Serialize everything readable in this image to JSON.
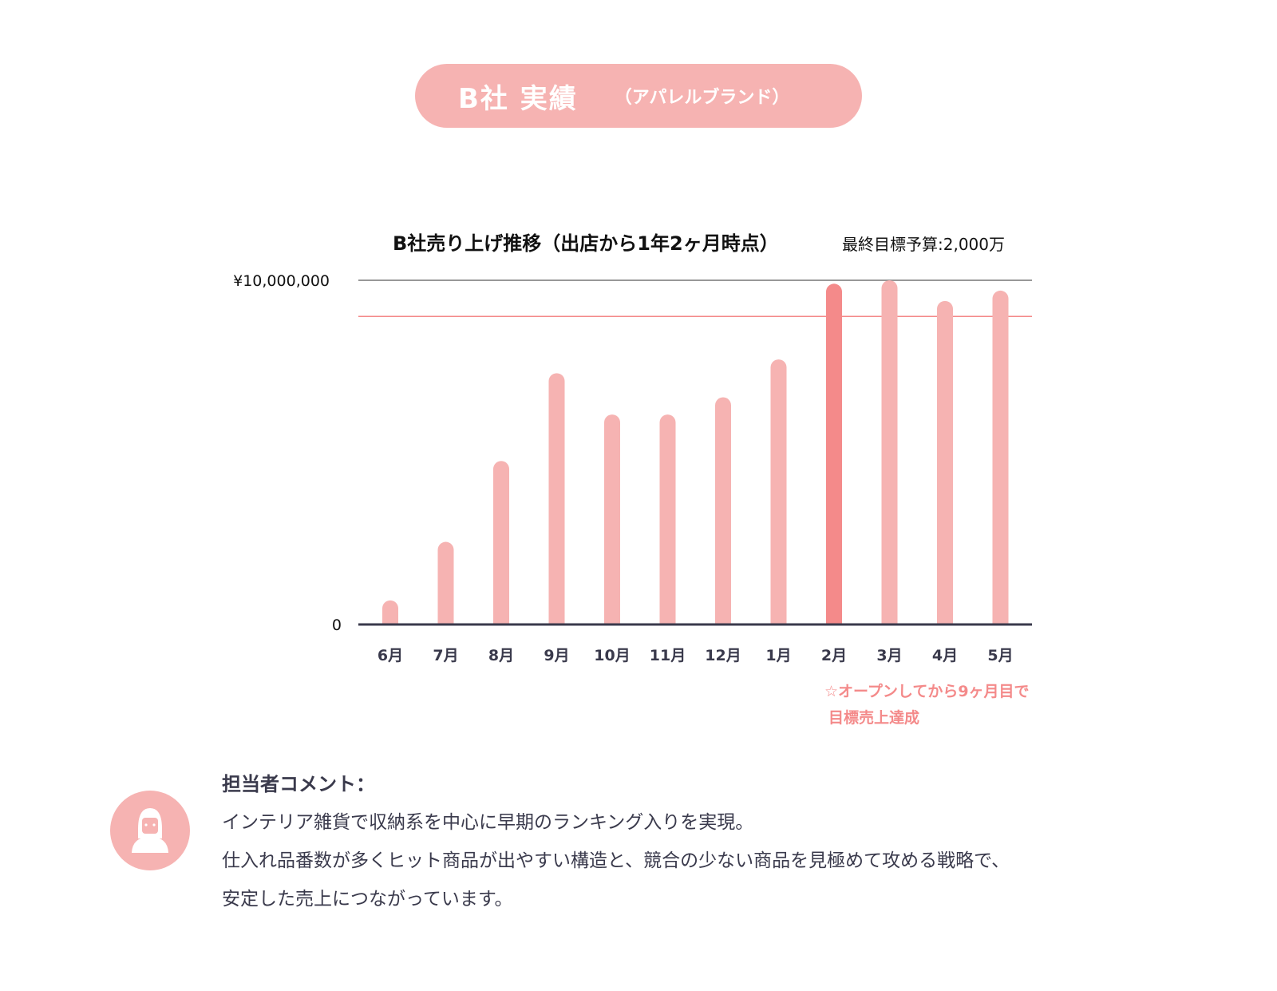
{
  "header": {
    "company_title": "B社 実績",
    "subtitle": "（アパレルブランド）"
  },
  "chart_data": {
    "type": "bar",
    "title": "B社売り上げ推移（出店から1年2ヶ月時点）",
    "subtitle": "最終目標予算:2,000万",
    "categories": [
      "6月",
      "7月",
      "8月",
      "9月",
      "10月",
      "11月",
      "12月",
      "1月",
      "2月",
      "3月",
      "4月",
      "5月"
    ],
    "values": [
      700000,
      2400000,
      4750000,
      7300000,
      6100000,
      6100000,
      6600000,
      7700000,
      9900000,
      10000000,
      9400000,
      9700000
    ],
    "highlight_index": 8,
    "ylim": [
      0,
      10000000
    ],
    "yticks": [
      {
        "value": 0,
        "label": "0"
      },
      {
        "value": 10000000,
        "label": "¥10,000,000"
      }
    ],
    "target_line_value": 8950000,
    "annotation": [
      "☆オープンしてから9ヶ月目で",
      "目標売上達成"
    ],
    "colors": {
      "bar": "#f6b3b2",
      "highlight": "#f48a8a",
      "target": "#f48a8a",
      "axis": "#3a3a4c",
      "top_grid": "#777777",
      "annotation": "#f48a8a"
    }
  },
  "comment": {
    "title": "担当者コメント：",
    "lines": [
      "インテリア雑貨で収納系を中心に早期のランキング入りを実現。",
      "仕入れ品番数が多くヒット商品が出やすい構造と、競合の少ない商品を見極めて攻める戦略で、",
      "安定した売上につながっています。"
    ]
  }
}
